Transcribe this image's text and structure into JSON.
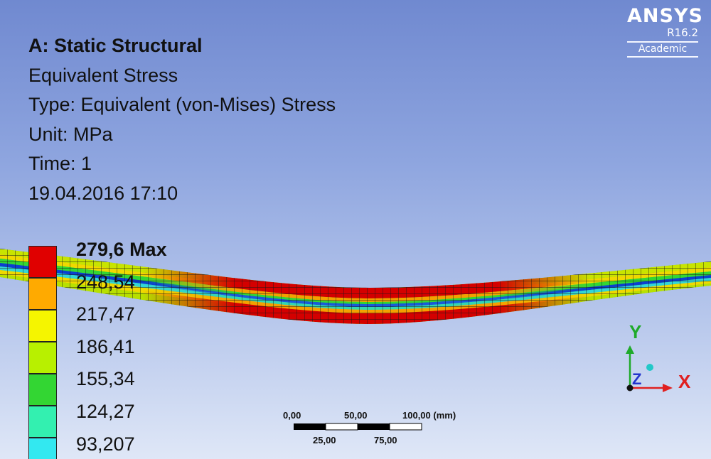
{
  "logo": {
    "brand": "ANSYS",
    "version": "R16.2",
    "edition": "Academic"
  },
  "header": {
    "title": "A: Static Structural",
    "result": "Equivalent Stress",
    "type": "Type: Equivalent (von-Mises) Stress",
    "unit": "Unit: MPa",
    "time": "Time: 1",
    "date": "19.04.2016 17:10"
  },
  "legend": {
    "labels": [
      "279,6 Max",
      "248,54",
      "217,47",
      "186,41",
      "155,34",
      "124,27",
      "93,207"
    ],
    "colors": [
      "#e00000",
      "#ffaa00",
      "#f5f500",
      "#b8f000",
      "#33d633",
      "#33f0b0",
      "#33e8f0"
    ]
  },
  "axes": {
    "y": "Y",
    "x": "X",
    "z": "Z",
    "y_color": "#1faa2a",
    "x_color": "#e02020",
    "z_color": "#2233cc"
  },
  "scale_bar": {
    "top_labels": [
      "0,00",
      "50,00",
      "100,00 (mm)"
    ],
    "bottom_labels": [
      "25,00",
      "75,00"
    ]
  }
}
